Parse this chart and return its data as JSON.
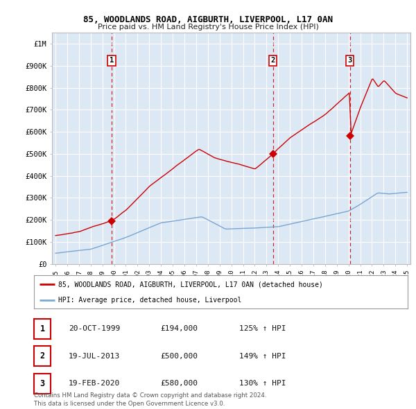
{
  "title1": "85, WOODLANDS ROAD, AIGBURTH, LIVERPOOL, L17 0AN",
  "title2": "Price paid vs. HM Land Registry's House Price Index (HPI)",
  "ylabel_ticks": [
    "£0",
    "£100K",
    "£200K",
    "£300K",
    "£400K",
    "£500K",
    "£600K",
    "£700K",
    "£800K",
    "£900K",
    "£1M"
  ],
  "ytick_values": [
    0,
    100000,
    200000,
    300000,
    400000,
    500000,
    600000,
    700000,
    800000,
    900000,
    1000000
  ],
  "ylim": [
    0,
    1050000
  ],
  "xlim_start": 1994.7,
  "xlim_end": 2025.3,
  "xtick_years": [
    1995,
    1996,
    1997,
    1998,
    1999,
    2000,
    2001,
    2002,
    2003,
    2004,
    2005,
    2006,
    2007,
    2008,
    2009,
    2010,
    2011,
    2012,
    2013,
    2014,
    2015,
    2016,
    2017,
    2018,
    2019,
    2020,
    2021,
    2022,
    2023,
    2024,
    2025
  ],
  "legend_label_red": "85, WOODLANDS ROAD, AIGBURTH, LIVERPOOL, L17 0AN (detached house)",
  "legend_label_blue": "HPI: Average price, detached house, Liverpool",
  "sale_points": [
    {
      "year": 1999.8,
      "price": 194000,
      "label": "1"
    },
    {
      "year": 2013.55,
      "price": 500000,
      "label": "2"
    },
    {
      "year": 2020.12,
      "price": 580000,
      "label": "3"
    }
  ],
  "sale_vlines": [
    1999.8,
    2013.55,
    2020.12
  ],
  "table_rows": [
    {
      "num": "1",
      "date": "20-OCT-1999",
      "price": "£194,000",
      "hpi": "125% ↑ HPI"
    },
    {
      "num": "2",
      "date": "19-JUL-2013",
      "price": "£500,000",
      "hpi": "149% ↑ HPI"
    },
    {
      "num": "3",
      "date": "19-FEB-2020",
      "price": "£580,000",
      "hpi": "130% ↑ HPI"
    }
  ],
  "footer": "Contains HM Land Registry data © Crown copyright and database right 2024.\nThis data is licensed under the Open Government Licence v3.0.",
  "red_color": "#cc0000",
  "blue_color": "#6699cc",
  "blue_line_color": "#6699cc",
  "vline_color": "#cc0000",
  "bg_color": "#ffffff",
  "chart_bg_color": "#dde8f5",
  "grid_color": "#ffffff"
}
